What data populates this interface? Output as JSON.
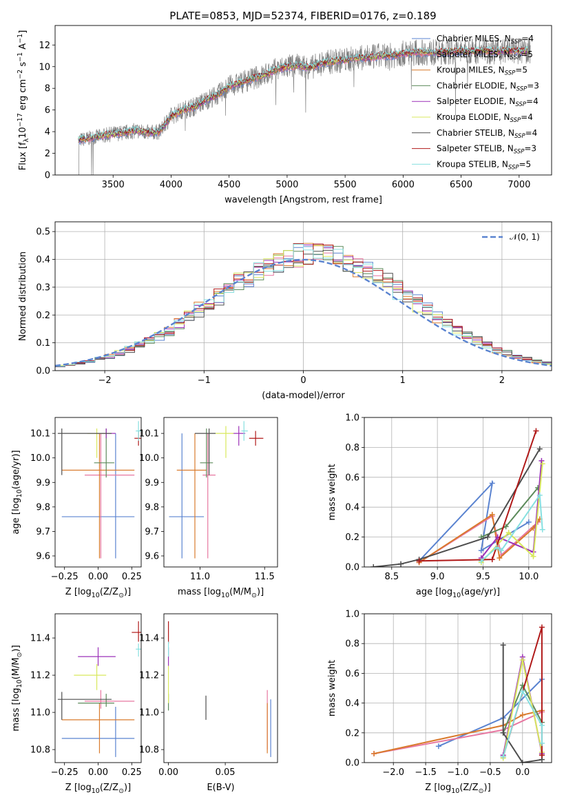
{
  "title": "PLATE=0853, MJD=52374, FIBERID=0176, z=0.189",
  "series_styles": [
    {
      "name": "Chabrier MILES, N$_{SSP}$=4",
      "label_main": "Chabrier MILES, N",
      "label_sub": "SSP",
      "label_tail": "=4",
      "color": "#5a83d0"
    },
    {
      "name": "Salpeter MILES, N$_{SSP}$=5",
      "label_main": "Salpeter MILES, N",
      "label_sub": "SSP",
      "label_tail": "=5",
      "color": "#e777a0"
    },
    {
      "name": "Kroupa MILES, N$_{SSP}$=5",
      "label_main": "Kroupa MILES, N",
      "label_sub": "SSP",
      "label_tail": "=5",
      "color": "#d97a2c"
    },
    {
      "name": "Chabrier ELODIE, N$_{SSP}$=3",
      "label_main": "Chabrier ELODIE, N",
      "label_sub": "SSP",
      "label_tail": "=3",
      "color": "#5c8a5a"
    },
    {
      "name": "Salpeter ELODIE, N$_{SSP}$=4",
      "label_main": "Salpeter ELODIE, N",
      "label_sub": "SSP",
      "label_tail": "=4",
      "color": "#9b30b8"
    },
    {
      "name": "Kroupa ELODIE, N$_{SSP}$=4",
      "label_main": "Kroupa ELODIE, N",
      "label_sub": "SSP",
      "label_tail": "=4",
      "color": "#d8e85c"
    },
    {
      "name": "Chabrier STELIB, N$_{SSP}$=4",
      "label_main": "Chabrier STELIB, N",
      "label_sub": "SSP",
      "label_tail": "=4",
      "color": "#4d4d4d"
    },
    {
      "name": "Salpeter STELIB, N$_{SSP}$=3",
      "label_main": "Salpeter STELIB, N",
      "label_sub": "SSP",
      "label_tail": "=3",
      "color": "#b01818"
    },
    {
      "name": "Kroupa STELIB, N$_{SSP}$=5",
      "label_main": "Kroupa STELIB, N",
      "label_sub": "SSP",
      "label_tail": "=5",
      "color": "#86e0e0"
    }
  ],
  "chart_data": [
    {
      "panel": "spectrum",
      "type": "line",
      "xlabel": "wavelength [Angstrom, rest frame]",
      "ylabel": "Flux [f$_\\lambda$10$^{-17}$ erg cm$^{-2}$ s$^{-1}$ A$^{-1}$]",
      "xlim": [
        3000,
        7280
      ],
      "ylim": [
        0,
        13.8
      ],
      "xticks": [
        3500,
        4000,
        4500,
        5000,
        5500,
        6000,
        6500,
        7000
      ],
      "yticks": [
        0,
        2,
        4,
        6,
        8,
        10,
        12
      ],
      "observed_color": "#808080",
      "continuum": {
        "x": [
          3200,
          3300,
          3400,
          3500,
          3600,
          3700,
          3800,
          3900,
          4000,
          4100,
          4200,
          4300,
          4400,
          4500,
          4600,
          4700,
          4800,
          4900,
          5000,
          5100,
          5200,
          5300,
          5400,
          5500,
          5600,
          5700,
          5800,
          5900,
          6000,
          6100,
          6200,
          6300,
          6400,
          6500,
          6600,
          6700,
          6800,
          6900,
          7000,
          7100
        ],
        "y": [
          3.2,
          3.4,
          3.6,
          3.8,
          3.9,
          4.1,
          3.9,
          4.0,
          5.4,
          6.0,
          6.3,
          6.9,
          7.4,
          8.2,
          8.5,
          8.9,
          9.2,
          9.7,
          10.0,
          10.1,
          9.9,
          10.3,
          10.5,
          10.6,
          10.8,
          10.8,
          11.0,
          11.0,
          11.2,
          11.3,
          11.3,
          11.3,
          11.4,
          11.4,
          11.4,
          11.5,
          11.4,
          11.5,
          11.4,
          11.5
        ]
      },
      "legend": "upper right"
    },
    {
      "panel": "residuals",
      "type": "histogram",
      "xlabel": "(data-model)/error",
      "ylabel": "Normed distribution",
      "xlim": [
        -2.5,
        2.5
      ],
      "ylim": [
        0,
        0.535
      ],
      "xticks": [
        -2,
        -1,
        0,
        1,
        2
      ],
      "yticks": [
        0.0,
        0.1,
        0.2,
        0.3,
        0.4,
        0.5
      ],
      "bin_width": 0.1,
      "reference_curve": {
        "name": "$\\mathcal{N}(0,1)$",
        "label_text": "𝒩(0, 1)",
        "color": "#5a83d0",
        "style": "dashed"
      },
      "legend": "upper right",
      "grid": true
    },
    {
      "panel": "age_vs_Z",
      "type": "errorbar",
      "xlabel": "Z [log$_{10}$(Z/Z$_\\odot$)]",
      "ylabel": "age  [log$_{10}$(age/yr)]",
      "xlim": [
        -0.32,
        0.32
      ],
      "ylim": [
        9.555,
        10.165
      ],
      "xticks": [
        -0.25,
        0.0,
        0.25
      ],
      "xtick_labels": [
        "−0.25",
        "0.00",
        "0.25"
      ],
      "yticks": [
        9.6,
        9.7,
        9.8,
        9.9,
        10.0,
        10.1
      ],
      "points": [
        {
          "series": 0,
          "x": 0.13,
          "y": 9.76,
          "x_lo": -0.27,
          "x_hi": 0.27,
          "y_lo": 9.59,
          "y_hi": 10.1
        },
        {
          "series": 1,
          "x": 0.02,
          "y": 9.93,
          "x_lo": -0.1,
          "x_hi": 0.27,
          "y_lo": 9.59,
          "y_hi": 10.1
        },
        {
          "series": 2,
          "x": 0.01,
          "y": 9.95,
          "x_lo": -0.27,
          "x_hi": 0.27,
          "y_lo": 9.59,
          "y_hi": 10.1
        },
        {
          "series": 3,
          "x": 0.06,
          "y": 9.98,
          "x_lo": -0.03,
          "x_hi": 0.12,
          "y_lo": 9.92,
          "y_hi": 10.12
        },
        {
          "series": 4,
          "x": 0.06,
          "y": 10.1,
          "x_lo": -0.02,
          "x_hi": 0.13,
          "y_lo": 10.08,
          "y_hi": 10.12
        },
        {
          "series": 5,
          "x": -0.01,
          "y": 10.1,
          "x_lo": -0.08,
          "x_hi": 0.06,
          "y_lo": 10.0,
          "y_hi": 10.12
        },
        {
          "series": 6,
          "x": -0.27,
          "y": 10.1,
          "x_lo": -0.3,
          "x_hi": 0.1,
          "y_lo": 9.93,
          "y_hi": 10.12
        },
        {
          "series": 7,
          "x": 0.3,
          "y": 10.08,
          "x_lo": 0.27,
          "x_hi": 0.33,
          "y_lo": 10.05,
          "y_hi": 10.11
        },
        {
          "series": 8,
          "x": 0.3,
          "y": 10.11,
          "x_lo": 0.28,
          "x_hi": 0.33,
          "y_lo": 10.07,
          "y_hi": 10.15
        }
      ]
    },
    {
      "panel": "age_vs_mass",
      "type": "errorbar",
      "xlabel": "mass [log$_{10}$(M/M$_\\odot$)]",
      "ylabel": "",
      "xlim": [
        10.72,
        11.6
      ],
      "ylim": [
        9.555,
        10.165
      ],
      "xticks": [
        11.0,
        11.5
      ],
      "xtick_labels": [
        "11.0",
        "11.5"
      ],
      "yticks": [
        9.6,
        9.7,
        9.8,
        9.9,
        10.0,
        10.1
      ],
      "points": [
        {
          "series": 0,
          "x": 10.86,
          "y": 9.76,
          "x_lo": 10.76,
          "x_hi": 11.03,
          "y_lo": 9.59,
          "y_hi": 10.1
        },
        {
          "series": 1,
          "x": 11.06,
          "y": 9.93,
          "x_lo": 11.02,
          "x_hi": 11.12,
          "y_lo": 9.59,
          "y_hi": 10.1
        },
        {
          "series": 2,
          "x": 10.96,
          "y": 9.95,
          "x_lo": 10.82,
          "x_hi": 11.05,
          "y_lo": 9.59,
          "y_hi": 10.1
        },
        {
          "series": 3,
          "x": 11.05,
          "y": 9.98,
          "x_lo": 11.0,
          "x_hi": 11.1,
          "y_lo": 9.92,
          "y_hi": 10.12
        },
        {
          "series": 4,
          "x": 11.3,
          "y": 10.1,
          "x_lo": 11.25,
          "x_hi": 11.35,
          "y_lo": 10.05,
          "y_hi": 10.13
        },
        {
          "series": 5,
          "x": 11.2,
          "y": 10.1,
          "x_lo": 11.12,
          "x_hi": 11.26,
          "y_lo": 10.0,
          "y_hi": 10.13
        },
        {
          "series": 6,
          "x": 11.07,
          "y": 10.1,
          "x_lo": 10.96,
          "x_hi": 11.12,
          "y_lo": 9.93,
          "y_hi": 10.12
        },
        {
          "series": 7,
          "x": 11.43,
          "y": 10.08,
          "x_lo": 11.38,
          "x_hi": 11.49,
          "y_lo": 10.05,
          "y_hi": 10.11
        },
        {
          "series": 8,
          "x": 11.34,
          "y": 10.11,
          "x_lo": 11.32,
          "x_hi": 11.37,
          "y_lo": 10.07,
          "y_hi": 10.15
        }
      ]
    },
    {
      "panel": "weight_vs_age",
      "type": "line",
      "xlabel": "age  [log$_{10}$(age/yr)]",
      "ylabel": "mass weight",
      "xlim": [
        8.2,
        10.25
      ],
      "ylim": [
        0.0,
        1.0
      ],
      "xticks": [
        8.5,
        9.0,
        9.5,
        10.0
      ],
      "xtick_labels": [
        "8.5",
        "9.0",
        "9.5",
        "10.0"
      ],
      "yticks": [
        0.0,
        0.2,
        0.4,
        0.6,
        0.8,
        1.0
      ],
      "grid": true,
      "lines": [
        {
          "series": 0,
          "x": [
            8.8,
            9.6,
            9.48,
            10.0
          ],
          "y": [
            0.04,
            0.56,
            0.11,
            0.3
          ]
        },
        {
          "series": 1,
          "x": [
            8.8,
            9.6,
            9.7,
            10.1
          ],
          "y": [
            0.03,
            0.34,
            0.08,
            0.3
          ]
        },
        {
          "series": 2,
          "x": [
            8.8,
            9.6,
            9.68,
            10.05,
            10.12
          ],
          "y": [
            0.03,
            0.35,
            0.06,
            0.26,
            0.32
          ]
        },
        {
          "series": 3,
          "x": [
            9.48,
            9.75,
            10.1
          ],
          "y": [
            0.2,
            0.27,
            0.53
          ]
        },
        {
          "series": 4,
          "x": [
            9.48,
            9.66,
            10.05,
            10.14
          ],
          "y": [
            0.06,
            0.2,
            0.1,
            0.71
          ]
        },
        {
          "series": 5,
          "x": [
            9.48,
            9.78,
            10.05,
            10.15
          ],
          "y": [
            0.03,
            0.23,
            0.07,
            0.69
          ]
        },
        {
          "series": 6,
          "x": [
            8.3,
            8.6,
            8.8,
            9.55,
            10.12
          ],
          "y": [
            0.0,
            0.02,
            0.05,
            0.2,
            0.79
          ]
        },
        {
          "series": 7,
          "x": [
            8.8,
            9.6,
            10.08
          ],
          "y": [
            0.04,
            0.05,
            0.91
          ]
        },
        {
          "series": 8,
          "x": [
            9.48,
            9.65,
            9.7,
            10.12,
            10.15
          ],
          "y": [
            0.04,
            0.13,
            0.11,
            0.48,
            0.25
          ]
        }
      ]
    },
    {
      "panel": "mass_vs_Z",
      "type": "errorbar",
      "xlabel": "Z [log$_{10}$(Z/Z$_\\odot$)]",
      "ylabel": "mass [log$_{10}$(M/M$_\\odot$)]",
      "xlim": [
        -0.32,
        0.32
      ],
      "ylim": [
        10.73,
        11.53
      ],
      "xticks": [
        -0.25,
        0.0,
        0.25
      ],
      "xtick_labels": [
        "−0.25",
        "0.00",
        "0.25"
      ],
      "yticks": [
        10.8,
        11.0,
        11.2,
        11.4
      ],
      "points": [
        {
          "series": 0,
          "x": 0.13,
          "y": 10.86,
          "x_lo": -0.27,
          "x_hi": 0.27,
          "y_lo": 10.76,
          "y_hi": 11.03
        },
        {
          "series": 1,
          "x": 0.02,
          "y": 11.06,
          "x_lo": -0.1,
          "x_hi": 0.27,
          "y_lo": 11.02,
          "y_hi": 11.12
        },
        {
          "series": 2,
          "x": 0.01,
          "y": 10.96,
          "x_lo": -0.27,
          "x_hi": 0.27,
          "y_lo": 10.78,
          "y_hi": 11.05
        },
        {
          "series": 3,
          "x": 0.06,
          "y": 11.05,
          "x_lo": -0.15,
          "x_hi": 0.12,
          "y_lo": 11.03,
          "y_hi": 11.1
        },
        {
          "series": 4,
          "x": 0.0,
          "y": 11.3,
          "x_lo": -0.15,
          "x_hi": 0.13,
          "y_lo": 11.25,
          "y_hi": 11.35
        },
        {
          "series": 5,
          "x": -0.01,
          "y": 11.2,
          "x_lo": -0.18,
          "x_hi": 0.06,
          "y_lo": 11.12,
          "y_hi": 11.26
        },
        {
          "series": 6,
          "x": -0.27,
          "y": 11.07,
          "x_lo": -0.3,
          "x_hi": 0.1,
          "y_lo": 10.96,
          "y_hi": 11.11
        },
        {
          "series": 7,
          "x": 0.3,
          "y": 11.43,
          "x_lo": 0.25,
          "x_hi": 0.33,
          "y_lo": 11.38,
          "y_hi": 11.49
        },
        {
          "series": 8,
          "x": 0.3,
          "y": 11.34,
          "x_lo": 0.28,
          "x_hi": 0.33,
          "y_lo": 11.3,
          "y_hi": 11.37
        }
      ]
    },
    {
      "panel": "mass_vs_ebv",
      "type": "errorbar",
      "xlabel": "E(B-V)",
      "ylabel": "",
      "xlim": [
        -0.004,
        0.096
      ],
      "ylim": [
        10.73,
        11.53
      ],
      "xticks": [
        0.0,
        0.05
      ],
      "xtick_labels": [
        "0.00",
        "0.05"
      ],
      "yticks": [
        10.8,
        11.0,
        11.2,
        11.4
      ],
      "points": [
        {
          "series": 0,
          "x": 0.09,
          "y": 10.9,
          "y_lo": 10.76,
          "y_hi": 11.07
        },
        {
          "series": 1,
          "x": 0.087,
          "y": 11.0,
          "y_lo": 10.8,
          "y_hi": 11.12
        },
        {
          "series": 2,
          "x": 0.087,
          "y": 10.95,
          "y_lo": 10.78,
          "y_hi": 11.05
        },
        {
          "series": 3,
          "x": 0.0,
          "y": 11.05,
          "y_lo": 11.01,
          "y_hi": 11.1
        },
        {
          "series": 4,
          "x": 0.0,
          "y": 11.3,
          "y_lo": 11.25,
          "y_hi": 11.35
        },
        {
          "series": 5,
          "x": 0.0,
          "y": 11.15,
          "y_lo": 11.05,
          "y_hi": 11.25
        },
        {
          "series": 6,
          "x": 0.033,
          "y": 11.02,
          "y_lo": 10.96,
          "y_hi": 11.09
        },
        {
          "series": 7,
          "x": 0.0,
          "y": 11.43,
          "y_lo": 11.37,
          "y_hi": 11.49
        },
        {
          "series": 8,
          "x": 0.0,
          "y": 11.34,
          "y_lo": 11.3,
          "y_hi": 11.38
        }
      ]
    },
    {
      "panel": "weight_vs_Z",
      "type": "line",
      "xlabel": "Z [log$_{10}$(Z/Z$_\\odot$)]",
      "ylabel": "mass weight",
      "xlim": [
        -2.45,
        0.45
      ],
      "ylim": [
        0.0,
        1.0
      ],
      "xticks": [
        -2.0,
        -1.5,
        -1.0,
        -0.5,
        0.0
      ],
      "xtick_labels": [
        "−2.0",
        "−1.5",
        "−1.0",
        "−0.5",
        "0.0"
      ],
      "yticks": [
        0.0,
        0.2,
        0.4,
        0.6,
        0.8,
        1.0
      ],
      "grid": true,
      "lines": [
        {
          "series": 0,
          "x": [
            -1.3,
            -0.3,
            0.3
          ],
          "y": [
            0.11,
            0.3,
            0.56
          ]
        },
        {
          "series": 1,
          "x": [
            -2.3,
            -0.3,
            0.3
          ],
          "y": [
            0.06,
            0.22,
            0.34
          ]
        },
        {
          "series": 2,
          "x": [
            -2.3,
            -0.3,
            0.0,
            0.3
          ],
          "y": [
            0.06,
            0.25,
            0.32,
            0.35
          ]
        },
        {
          "series": 3,
          "x": [
            -0.3,
            0.0,
            0.3
          ],
          "y": [
            0.2,
            0.52,
            0.27
          ]
        },
        {
          "series": 4,
          "x": [
            -0.3,
            0.0,
            0.3
          ],
          "y": [
            0.05,
            0.71,
            0.06
          ]
        },
        {
          "series": 5,
          "x": [
            -0.3,
            0.0,
            0.3
          ],
          "y": [
            0.03,
            0.69,
            0.07
          ]
        },
        {
          "series": 6,
          "x": [
            -0.3,
            -0.3,
            0.0,
            0.3,
            0.3
          ],
          "y": [
            0.79,
            0.2,
            0.0,
            0.02,
            0.05
          ]
        },
        {
          "series": 7,
          "x": [
            -0.3,
            0.3,
            0.3
          ],
          "y": [
            0.04,
            0.91,
            0.05
          ]
        },
        {
          "series": 8,
          "x": [
            -0.3,
            0.0,
            0.3,
            0.3
          ],
          "y": [
            0.04,
            0.48,
            0.25,
            0.13
          ]
        }
      ]
    }
  ]
}
